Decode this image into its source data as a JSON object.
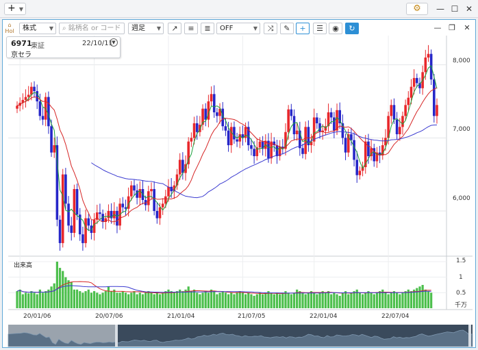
{
  "titlebar": {
    "add_label": "+",
    "gear_icon": "gear-icon"
  },
  "toolbar": {
    "home_label": "Hol",
    "type_select": "株式",
    "search_placeholder": "銘柄名 or コード",
    "period_select": "週足",
    "overlay_select": "OFF"
  },
  "info": {
    "code": "6971",
    "market": "東証",
    "date": "22/10/11",
    "name": "京セラ"
  },
  "price_axis": [
    "8,000",
    "7,000",
    "6,000"
  ],
  "volume": {
    "title": "出来高",
    "axis": [
      "1.5",
      "1",
      "0.5"
    ],
    "unit": "千万"
  },
  "date_axis": [
    "20/01/06",
    "20/07/06",
    "21/01/04",
    "21/07/05",
    "22/01/04",
    "22/07/04"
  ],
  "colors": {
    "up": "#e8272b",
    "down": "#2626c8",
    "ma_short": "#1c9e3a",
    "ma_mid": "#d62525",
    "ma_long": "#3a3ad0",
    "volume": "#4cbf4c",
    "accent": "#2d8fd5"
  },
  "chart_data": [
    {
      "type": "candlestick",
      "ylim": [
        5400,
        8400
      ],
      "date_axis_ticks": [
        "20/01/06",
        "20/07/06",
        "21/01/04",
        "21/07/05",
        "22/01/04",
        "22/07/04"
      ],
      "close": [
        7440,
        7480,
        7520,
        7560,
        7590,
        7700,
        7640,
        7500,
        7300,
        7250,
        7560,
        7160,
        6800,
        6900,
        5880,
        5560,
        6500,
        6100,
        5800,
        5700,
        6300,
        5950,
        5680,
        5560,
        5900,
        5800,
        5700,
        5880,
        5980,
        5960,
        5850,
        5900,
        6000,
        5900,
        6000,
        5800,
        6100,
        6050,
        6030,
        6200,
        6350,
        6280,
        6180,
        6300,
        6150,
        6080,
        6270,
        6300,
        6000,
        5900,
        6050,
        6100,
        6200,
        6330,
        6270,
        6350,
        6500,
        6700,
        6520,
        6640,
        6950,
        7000,
        7200,
        7080,
        7180,
        7400,
        7250,
        7500,
        7600,
        7350,
        7300,
        7400,
        7160,
        7100,
        6900,
        7150,
        6980,
        6950,
        7050,
        7000,
        7150,
        6900,
        6850,
        6750,
        6870,
        6950,
        6850,
        6960,
        6720,
        6950,
        6900,
        6750,
        6880,
        6850,
        7080,
        7390,
        7300,
        7050,
        7100,
        6860,
        6780,
        7150,
        6900,
        6950,
        7280,
        7200,
        7080,
        7100,
        7160,
        7350,
        7280,
        7100,
        7380,
        7200,
        7000,
        6800,
        7050,
        6970,
        6700,
        6490,
        6550,
        6600,
        6950,
        6750,
        6860,
        6680,
        6800,
        6760,
        6900,
        7000,
        7300,
        7450,
        7250,
        7050,
        7150,
        7300,
        7450,
        7550,
        7700,
        7820,
        7750,
        7680,
        7900,
        8100,
        8150,
        7800,
        7300,
        7450
      ]
    },
    {
      "type": "bar",
      "title": "出来高",
      "ylim": [
        0,
        1.5
      ],
      "unit": "千万",
      "values": [
        0.55,
        0.6,
        0.45,
        0.5,
        0.48,
        0.55,
        0.5,
        0.45,
        0.6,
        0.5,
        0.55,
        0.6,
        0.7,
        0.8,
        1.5,
        1.3,
        1.2,
        1.0,
        0.9,
        0.85,
        0.6,
        0.6,
        0.55,
        0.5,
        0.55,
        0.6,
        0.5,
        0.55,
        0.5,
        0.45,
        0.5,
        0.55,
        0.7,
        0.55,
        0.6,
        0.5,
        0.5,
        0.55,
        0.5,
        0.45,
        0.5,
        0.55,
        0.45,
        0.5,
        0.45,
        0.5,
        0.55,
        0.5,
        0.45,
        0.5,
        0.45,
        0.5,
        0.55,
        0.6,
        0.55,
        0.5,
        0.55,
        0.6,
        0.55,
        0.6,
        0.7,
        0.55,
        0.6,
        0.5,
        0.45,
        0.5,
        0.55,
        0.5,
        0.6,
        0.55,
        0.45,
        0.5,
        0.55,
        0.5,
        0.45,
        0.5,
        0.45,
        0.5,
        0.55,
        0.5,
        0.45,
        0.5,
        0.45,
        0.4,
        0.45,
        0.5,
        0.45,
        0.5,
        0.55,
        0.5,
        0.45,
        0.5,
        0.45,
        0.5,
        0.55,
        0.5,
        0.45,
        0.5,
        0.6,
        0.55,
        0.5,
        0.45,
        0.5,
        0.55,
        0.5,
        0.45,
        0.5,
        0.55,
        0.5,
        0.55,
        0.45,
        0.5,
        0.45,
        0.4,
        0.5,
        0.55,
        0.45,
        0.5,
        0.55,
        0.6,
        0.5,
        0.45,
        0.5,
        0.55,
        0.5,
        0.45,
        0.5,
        0.55,
        0.6,
        0.5,
        0.45,
        0.5,
        0.55,
        0.5,
        0.45,
        0.5,
        0.55,
        0.6,
        0.55,
        0.6,
        0.65,
        0.7,
        0.75,
        0.6,
        0.55,
        0.5
      ]
    }
  ]
}
